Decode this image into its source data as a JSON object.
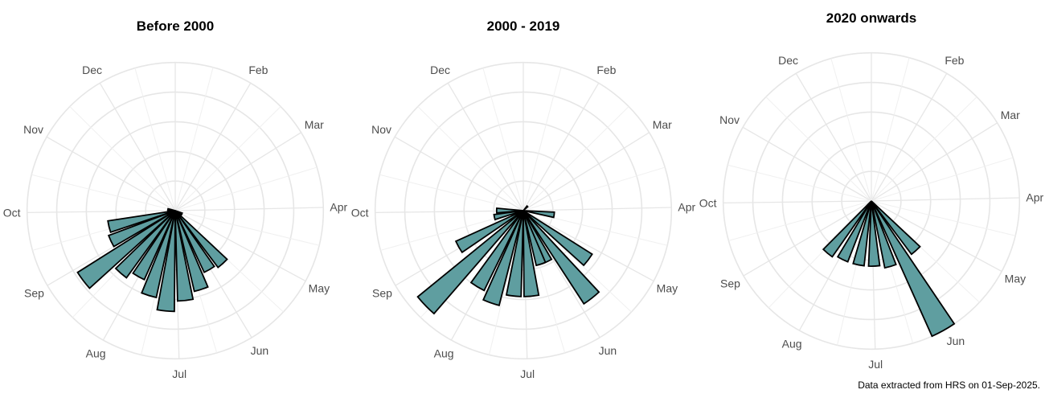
{
  "caption": "Data extracted from HRS on 01-Sep-2025.",
  "colors": {
    "bar_fill": "#5f9ea0",
    "bar_stroke": "#000000",
    "grid": "#e6e6e6",
    "label": "#4d4d4d"
  },
  "chart_data": [
    {
      "type": "bar",
      "coord": "polar",
      "title": "Before 2000",
      "tick_labels": [
        "Dec",
        "Feb",
        "Mar",
        "Apr",
        "May",
        "Jun",
        "Jul",
        "Aug",
        "Sep",
        "Oct",
        "Nov"
      ],
      "angle_unit": "day of year",
      "grid": true,
      "ylim": [
        0,
        100
      ],
      "bars": [
        {
          "day": 117,
          "value": 5
        },
        {
          "day": 129,
          "value": 5
        },
        {
          "day": 141,
          "value": 48
        },
        {
          "day": 153,
          "value": 46
        },
        {
          "day": 165,
          "value": 56
        },
        {
          "day": 177,
          "value": 61
        },
        {
          "day": 189,
          "value": 68
        },
        {
          "day": 201,
          "value": 60
        },
        {
          "day": 213,
          "value": 51
        },
        {
          "day": 225,
          "value": 56
        },
        {
          "day": 237,
          "value": 78
        },
        {
          "day": 249,
          "value": 48
        },
        {
          "day": 261,
          "value": 46
        },
        {
          "day": 273,
          "value": 5
        },
        {
          "day": 285,
          "value": 5
        }
      ]
    },
    {
      "type": "bar",
      "coord": "polar",
      "title": "2000 - 2019",
      "tick_labels": [
        "Dec",
        "Feb",
        "Mar",
        "Apr",
        "May",
        "Jun",
        "Jul",
        "Aug",
        "Sep",
        "Oct",
        "Nov"
      ],
      "angle_unit": "day of year",
      "grid": true,
      "ylim": [
        0,
        100
      ],
      "bars": [
        {
          "day": 45,
          "value": 4
        },
        {
          "day": 100,
          "value": 21
        },
        {
          "day": 130,
          "value": 55
        },
        {
          "day": 145,
          "value": 75
        },
        {
          "day": 158,
          "value": 38
        },
        {
          "day": 165,
          "value": 38
        },
        {
          "day": 178,
          "value": 58
        },
        {
          "day": 190,
          "value": 58
        },
        {
          "day": 203,
          "value": 66
        },
        {
          "day": 215,
          "value": 60
        },
        {
          "day": 230,
          "value": 92
        },
        {
          "day": 245,
          "value": 50
        },
        {
          "day": 262,
          "value": 20
        },
        {
          "day": 275,
          "value": 18
        }
      ]
    },
    {
      "type": "bar",
      "coord": "polar",
      "title": "2020 onwards",
      "tick_labels": [
        "Dec",
        "Feb",
        "Mar",
        "Apr",
        "May",
        "Jun",
        "Jul",
        "Aug",
        "Sep",
        "Oct",
        "Nov"
      ],
      "angle_unit": "day of year",
      "grid": true,
      "ylim": [
        0,
        100
      ],
      "bars": [
        {
          "day": 141,
          "value": 45
        },
        {
          "day": 154,
          "value": 100
        },
        {
          "day": 167,
          "value": 46
        },
        {
          "day": 181,
          "value": 44
        },
        {
          "day": 195,
          "value": 44
        },
        {
          "day": 210,
          "value": 44
        },
        {
          "day": 224,
          "value": 46
        }
      ]
    }
  ]
}
